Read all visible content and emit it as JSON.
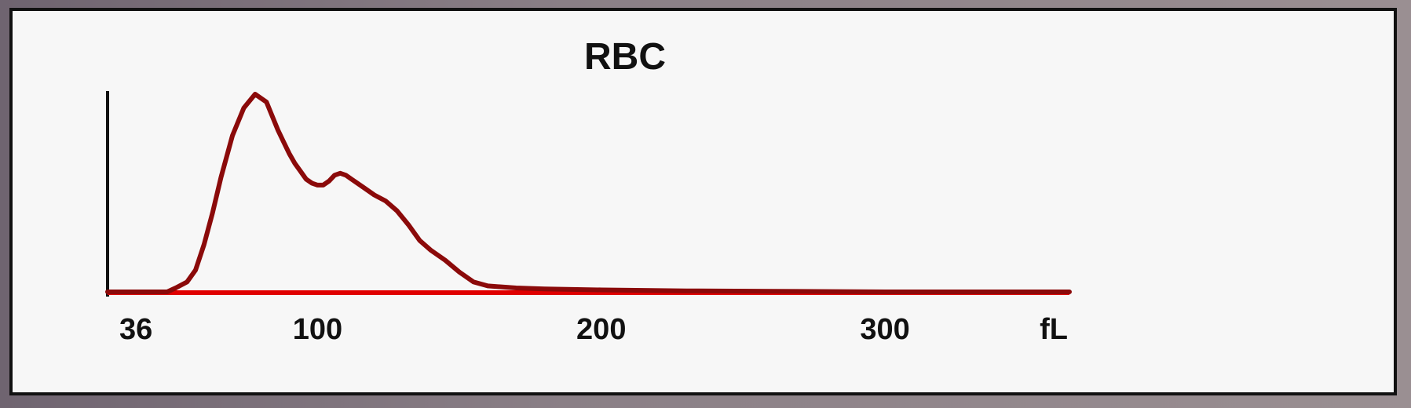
{
  "chart_data": {
    "type": "line",
    "title": "RBC",
    "xlabel": "fL",
    "ylabel": "",
    "xlim": [
      26,
      365
    ],
    "ylim": [
      0,
      100
    ],
    "xticks": [
      36,
      100,
      200,
      300
    ],
    "x_unit_label": "fL",
    "grid": false,
    "legend": "none",
    "line_color": "#8b0a0a",
    "baseline_color": "#e00000",
    "series": [
      {
        "x": [
          26,
          47,
          50,
          54,
          57,
          60,
          63,
          66,
          70,
          74,
          78,
          82,
          84,
          86,
          88,
          90,
          92,
          94,
          96,
          98,
          100,
          102,
          104,
          106,
          108,
          110,
          112,
          116,
          120,
          124,
          128,
          132,
          136,
          140,
          145,
          150,
          155,
          160,
          170,
          180,
          200,
          230,
          260,
          300,
          365
        ],
        "y": [
          0,
          0,
          2,
          5,
          11,
          24,
          40,
          58,
          79,
          93,
          100,
          96,
          89,
          82,
          76,
          70,
          65,
          61,
          57,
          55,
          54,
          54,
          56,
          59,
          60,
          59,
          57,
          53,
          49,
          46,
          41,
          34,
          26,
          21,
          16,
          10,
          5,
          3,
          2,
          1.5,
          1,
          0.5,
          0.3,
          0,
          0
        ]
      }
    ]
  }
}
